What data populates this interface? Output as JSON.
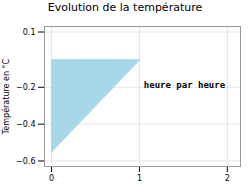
{
  "chart_data": {
    "type": "polygon",
    "title": "Evolution de la température",
    "ylabel": "Température en °C",
    "x": [
      0,
      0,
      1
    ],
    "values": [
      -0.55,
      -0.05,
      -0.05
    ],
    "color": "#a8d8e8",
    "xlim": [
      -0.08,
      2.15
    ],
    "xticks": [
      0,
      1,
      2
    ],
    "ylim": [
      -0.63,
      0.13
    ],
    "yticks": [
      0.1,
      -0.2,
      -0.4,
      -0.6
    ],
    "grid": true,
    "annotations": [
      {
        "text": "heure par heure",
        "x": 1.05,
        "y": -0.19
      }
    ]
  }
}
